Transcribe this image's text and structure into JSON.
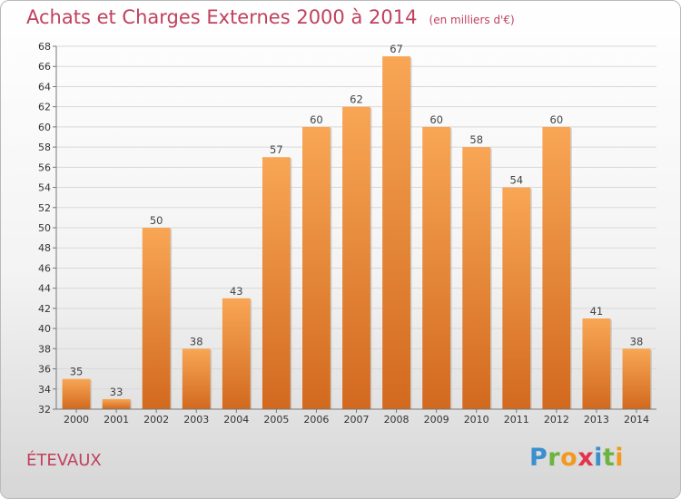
{
  "header": {
    "title": "Achats et Charges Externes 2000 à 2014",
    "unit": "(en milliers d'€)"
  },
  "commune": "ÉTEVAUX",
  "logo": {
    "text": "Proxiti",
    "letters": [
      {
        "ch": "P",
        "color": "#3a8fd0"
      },
      {
        "ch": "r",
        "color": "#6cb33f"
      },
      {
        "ch": "o",
        "color": "#f39a1e"
      },
      {
        "ch": "x",
        "color": "#e2344a"
      },
      {
        "ch": "i",
        "color": "#3a8fd0"
      },
      {
        "ch": "t",
        "color": "#6cb33f"
      },
      {
        "ch": "i",
        "color": "#f39a1e"
      }
    ]
  },
  "chart_data": {
    "type": "bar",
    "title": "Achats et Charges Externes 2000 à 2014",
    "subtitle": "(en milliers d'€)",
    "categories": [
      "2000",
      "2001",
      "2002",
      "2003",
      "2004",
      "2005",
      "2006",
      "2007",
      "2008",
      "2009",
      "2010",
      "2011",
      "2012",
      "2013",
      "2014"
    ],
    "values": [
      35,
      33,
      50,
      38,
      43,
      57,
      60,
      62,
      67,
      60,
      58,
      54,
      60,
      41,
      38
    ],
    "ylim": [
      32,
      68
    ],
    "yticks": [
      32,
      34,
      36,
      38,
      40,
      42,
      44,
      46,
      48,
      50,
      52,
      54,
      56,
      58,
      60,
      62,
      64,
      66,
      68
    ],
    "grid": true,
    "bar_color_top": "#f8a655",
    "bar_color_bottom": "#d2691e"
  }
}
